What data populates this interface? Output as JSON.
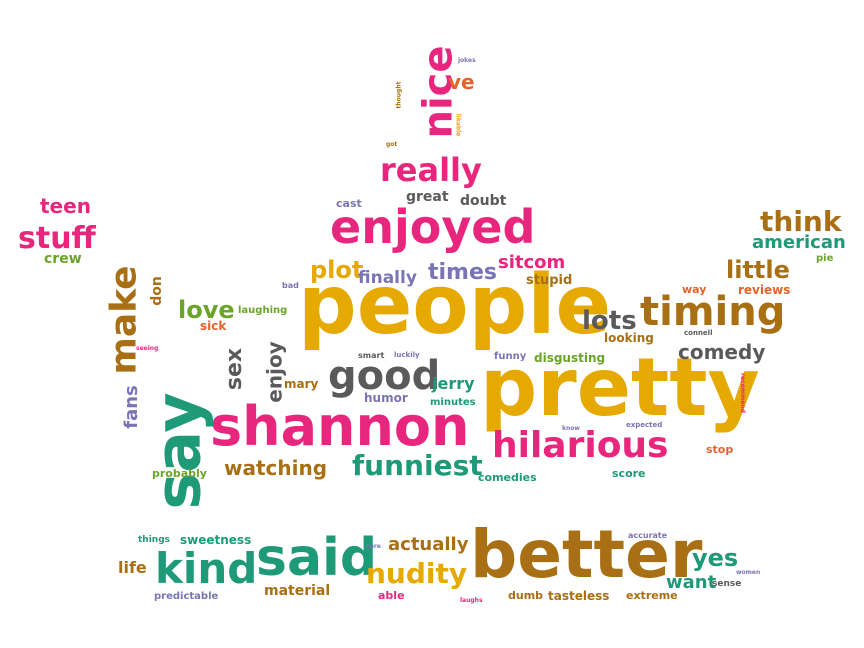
{
  "colors": {
    "pink": "#e8267e",
    "yellow": "#e6a900",
    "teal": "#1f9a78",
    "green": "#6aa52a",
    "brown": "#a86f14",
    "gray": "#5a5a5a",
    "purple": "#7a74b5",
    "orange": "#e3632b"
  },
  "words": [
    {
      "text": "people",
      "color": "yellow"
    },
    {
      "text": "pretty",
      "color": "yellow"
    },
    {
      "text": "shannon",
      "color": "pink"
    },
    {
      "text": "better",
      "color": "brown"
    },
    {
      "text": "say",
      "color": "teal"
    },
    {
      "text": "said",
      "color": "teal"
    },
    {
      "text": "enjoyed",
      "color": "pink"
    },
    {
      "text": "hilarious",
      "color": "pink"
    },
    {
      "text": "kind",
      "color": "teal"
    },
    {
      "text": "nice",
      "color": "pink"
    },
    {
      "text": "good",
      "color": "gray"
    },
    {
      "text": "timing",
      "color": "brown"
    },
    {
      "text": "make",
      "color": "brown"
    },
    {
      "text": "really",
      "color": "pink"
    },
    {
      "text": "funniest",
      "color": "teal"
    },
    {
      "text": "nudity",
      "color": "yellow"
    },
    {
      "text": "stuff",
      "color": "pink"
    },
    {
      "text": "lots",
      "color": "gray"
    },
    {
      "text": "plot",
      "color": "yellow"
    },
    {
      "text": "times",
      "color": "purple"
    },
    {
      "text": "love",
      "color": "green"
    },
    {
      "text": "sex",
      "color": "gray"
    },
    {
      "text": "watching",
      "color": "brown"
    },
    {
      "text": "enjoy",
      "color": "gray"
    },
    {
      "text": "think",
      "color": "brown"
    },
    {
      "text": "little",
      "color": "brown"
    },
    {
      "text": "american",
      "color": "teal"
    },
    {
      "text": "comedy",
      "color": "gray"
    },
    {
      "text": "yes",
      "color": "teal"
    },
    {
      "text": "actually",
      "color": "brown"
    },
    {
      "text": "want",
      "color": "teal"
    },
    {
      "text": "teen",
      "color": "pink"
    },
    {
      "text": "finally",
      "color": "purple"
    },
    {
      "text": "sitcom",
      "color": "pink"
    },
    {
      "text": "ve",
      "color": "orange"
    },
    {
      "text": "fans",
      "color": "purple"
    },
    {
      "text": "jerry",
      "color": "teal"
    },
    {
      "text": "life",
      "color": "brown"
    },
    {
      "text": "material",
      "color": "brown"
    },
    {
      "text": "great",
      "color": "gray"
    },
    {
      "text": "doubt",
      "color": "gray"
    },
    {
      "text": "humor",
      "color": "purple"
    },
    {
      "text": "mary",
      "color": "brown"
    },
    {
      "text": "don",
      "color": "brown"
    },
    {
      "text": "crew",
      "color": "green"
    },
    {
      "text": "stupid",
      "color": "brown"
    },
    {
      "text": "looking",
      "color": "brown"
    },
    {
      "text": "disgusting",
      "color": "green"
    },
    {
      "text": "funny",
      "color": "purple"
    },
    {
      "text": "minutes",
      "color": "teal"
    },
    {
      "text": "sweetness",
      "color": "teal"
    },
    {
      "text": "comedies",
      "color": "teal"
    },
    {
      "text": "score",
      "color": "teal"
    },
    {
      "text": "stop",
      "color": "orange"
    },
    {
      "text": "reviews",
      "color": "orange"
    },
    {
      "text": "way",
      "color": "orange"
    },
    {
      "text": "pie",
      "color": "green"
    },
    {
      "text": "cast",
      "color": "purple"
    },
    {
      "text": "sick",
      "color": "orange"
    },
    {
      "text": "laughing",
      "color": "green"
    },
    {
      "text": "probably",
      "color": "green"
    },
    {
      "text": "predictable",
      "color": "purple"
    },
    {
      "text": "things",
      "color": "teal"
    },
    {
      "text": "able",
      "color": "pink"
    },
    {
      "text": "dumb",
      "color": "brown"
    },
    {
      "text": "tasteless",
      "color": "brown"
    },
    {
      "text": "extreme",
      "color": "brown"
    },
    {
      "text": "sense",
      "color": "gray"
    },
    {
      "text": "smart",
      "color": "gray"
    },
    {
      "text": "luckily",
      "color": "purple"
    },
    {
      "text": "bad",
      "color": "purple"
    },
    {
      "text": "connell",
      "color": "gray"
    },
    {
      "text": "seeing",
      "color": "pink"
    },
    {
      "text": "expected",
      "color": "purple"
    },
    {
      "text": "know",
      "color": "purple"
    },
    {
      "text": "accurate",
      "color": "purple"
    },
    {
      "text": "women",
      "color": "purple"
    },
    {
      "text": "laughs",
      "color": "pink"
    },
    {
      "text": "sure",
      "color": "purple"
    },
    {
      "text": "recommend",
      "color": "pink"
    },
    {
      "text": "thought",
      "color": "brown"
    },
    {
      "text": "jokes",
      "color": "purple"
    },
    {
      "text": "likable",
      "color": "yellow"
    },
    {
      "text": "got",
      "color": "brown"
    }
  ]
}
